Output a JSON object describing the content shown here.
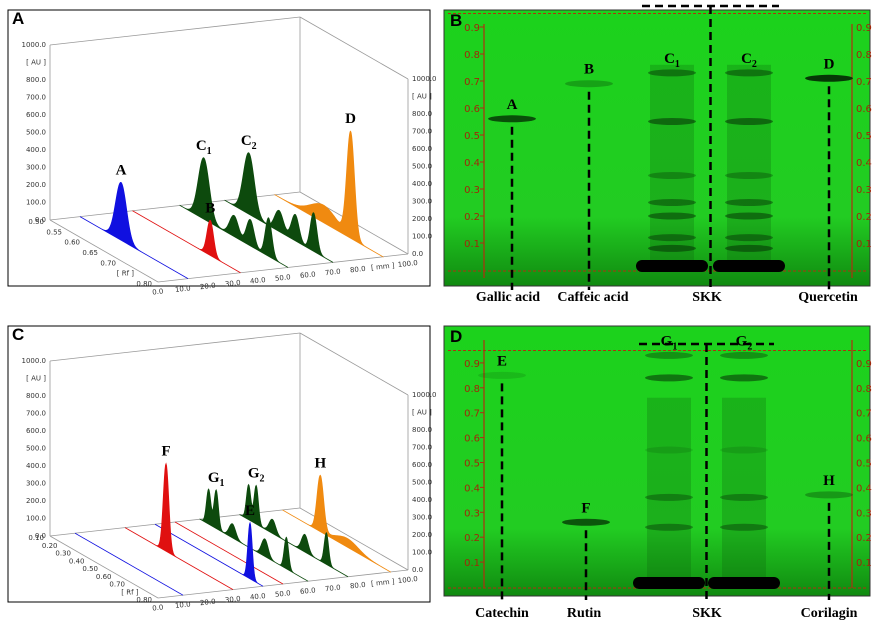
{
  "densitograms": [
    {
      "label": "A",
      "au_ticks": [
        "1000.0",
        "[ AU ]",
        "800.0",
        "700.0",
        "600.0",
        "500.0",
        "400.0",
        "300.0",
        "200.0",
        "100.0",
        "0.0"
      ],
      "rf_ticks": [
        "0.50",
        "0.55",
        "0.60",
        "0.65",
        "0.70",
        "[ Rf ]",
        "0.80"
      ],
      "mm_ticks": [
        "0.0",
        "10.0",
        "20.0",
        "30.0",
        "40.0",
        "50.0",
        "60.0",
        "70.0",
        "80.0",
        "[ mm ]",
        "100.0"
      ],
      "peaks": [
        {
          "text": "A"
        },
        {
          "text": "B"
        },
        {
          "text": "C",
          "sub": "1"
        },
        {
          "text": "C",
          "sub": "2"
        },
        {
          "text": "D"
        }
      ]
    },
    {
      "label": "C",
      "au_ticks": [
        "1000.0",
        "[ AU ]",
        "800.0",
        "700.0",
        "600.0",
        "500.0",
        "400.0",
        "300.0",
        "200.0",
        "100.0",
        "0.0"
      ],
      "rf_ticks": [
        "0.10",
        "0.20",
        "0.30",
        "0.40",
        "0.50",
        "0.60",
        "0.70",
        "[ Rf ]",
        "0.80"
      ],
      "mm_ticks": [
        "0.0",
        "10.0",
        "20.0",
        "30.0",
        "40.0",
        "50.0",
        "60.0",
        "70.0",
        "80.0",
        "[ mm ]",
        "100.0"
      ],
      "peaks": [
        {
          "text": "F"
        },
        {
          "text": "E"
        },
        {
          "text": "G",
          "sub": "1"
        },
        {
          "text": "G",
          "sub": "2"
        },
        {
          "text": "H"
        }
      ]
    }
  ],
  "plates": [
    {
      "label": "B",
      "ticks": [
        0.9,
        0.8,
        0.7,
        0.6,
        0.5,
        0.4,
        0.3,
        0.2,
        0.1
      ],
      "bands": [
        {
          "text": "A"
        },
        {
          "text": "B"
        },
        {
          "text": "C",
          "sub": "1"
        },
        {
          "text": "C",
          "sub": "2"
        },
        {
          "text": "D"
        }
      ],
      "lanes": [
        "Gallic acid",
        "Caffeic acid",
        "SKK",
        "Quercetin"
      ]
    },
    {
      "label": "D",
      "ticks": [
        0.9,
        0.8,
        0.7,
        0.6,
        0.5,
        0.4,
        0.3,
        0.2,
        0.1
      ],
      "bands": [
        {
          "text": "E"
        },
        {
          "text": "F"
        },
        {
          "text": "G",
          "sub": "1"
        },
        {
          "text": "G",
          "sub": "2"
        },
        {
          "text": "H"
        }
      ],
      "lanes": [
        "Catechin",
        "Rutin",
        "SKK",
        "Corilagin"
      ]
    }
  ]
}
